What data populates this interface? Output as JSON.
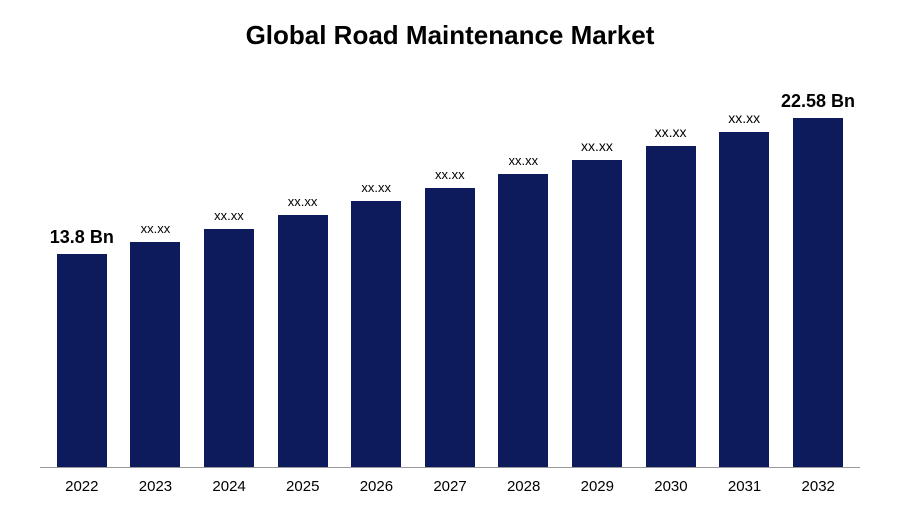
{
  "chart": {
    "type": "bar",
    "title": "Global Road Maintenance Market",
    "title_fontsize": 26,
    "title_fontweight": "bold",
    "title_color": "#000000",
    "background_color": "#ffffff",
    "bar_color": "#0d1b5c",
    "axis_line_color": "#999999",
    "x_tick_fontsize": 15,
    "x_tick_color": "#000000",
    "categories": [
      "2022",
      "2023",
      "2024",
      "2025",
      "2026",
      "2027",
      "2028",
      "2029",
      "2030",
      "2031",
      "2032"
    ],
    "values": [
      13.8,
      14.6,
      15.4,
      16.3,
      17.2,
      18.1,
      19.0,
      19.9,
      20.8,
      21.7,
      22.58
    ],
    "value_labels": [
      "13.8 Bn",
      "xx.xx",
      "xx.xx",
      "xx.xx",
      "xx.xx",
      "xx.xx",
      "xx.xx",
      "xx.xx",
      "xx.xx",
      "xx.xx",
      "22.58 Bn"
    ],
    "label_fontsizes": [
      18,
      13,
      13,
      13,
      13,
      13,
      13,
      14,
      14,
      14,
      18
    ],
    "label_fontweights": [
      "bold",
      "normal",
      "normal",
      "normal",
      "normal",
      "normal",
      "normal",
      "normal",
      "normal",
      "normal",
      "bold"
    ],
    "label_color": "#000000",
    "ylim": [
      0,
      25
    ],
    "bar_width": 0.68
  }
}
